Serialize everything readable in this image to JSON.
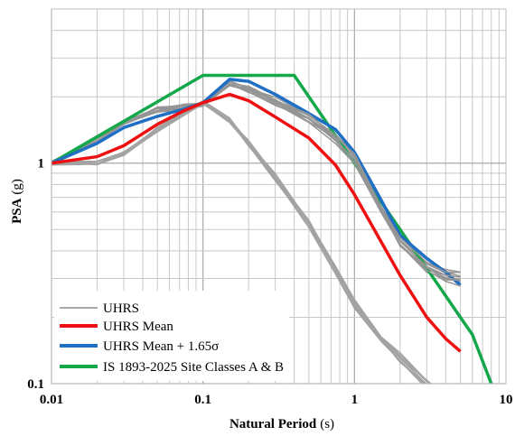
{
  "chart_data": {
    "type": "line",
    "title": "",
    "xlabel": "Natural Period",
    "xlabel_unit": "(s)",
    "ylabel": "PSA",
    "ylabel_unit": "(g)",
    "xscale": "log",
    "yscale": "log",
    "xlim": [
      0.01,
      10
    ],
    "ylim": [
      0.1,
      5
    ],
    "xticks": [
      {
        "value": 0.01,
        "label": "0.01"
      },
      {
        "value": 0.1,
        "label": "0.1"
      },
      {
        "value": 1,
        "label": "1"
      },
      {
        "value": 10,
        "label": "10"
      }
    ],
    "yticks": [
      {
        "value": 0.1,
        "label": "0.1"
      },
      {
        "value": 1,
        "label": "1"
      }
    ],
    "grid": "major and minor",
    "legend_position": "bottom-left",
    "uhrs_bundles": [
      {
        "color": "#959595",
        "count": 10,
        "x": [
          0.01,
          0.02,
          0.03,
          0.05,
          0.075,
          0.1,
          0.15,
          0.2,
          0.3,
          0.5,
          0.75,
          1.0,
          1.5,
          2.0,
          3.0,
          4.0,
          5.0
        ],
        "y": [
          1.0,
          1.27,
          1.52,
          1.75,
          1.8,
          1.86,
          2.28,
          2.16,
          1.9,
          1.6,
          1.3,
          1.05,
          0.62,
          0.44,
          0.34,
          0.31,
          0.3
        ],
        "spread": 0.06
      },
      {
        "color": "#a3a3a3",
        "count": 10,
        "x": [
          0.01,
          0.02,
          0.03,
          0.05,
          0.075,
          0.1,
          0.15,
          0.2,
          0.3,
          0.5,
          0.75,
          1.0,
          1.5,
          2.0,
          3.0,
          4.0,
          5.0
        ],
        "y": [
          1.0,
          1.0,
          1.1,
          1.42,
          1.7,
          1.9,
          1.55,
          1.23,
          0.86,
          0.53,
          0.33,
          0.23,
          0.16,
          0.13,
          0.1,
          0.085,
          0.075
        ],
        "spread": 0.05
      }
    ],
    "series": [
      {
        "name": "UHRS",
        "color": "#8c8c8c",
        "x": [],
        "y": []
      },
      {
        "name": "UHRS Mean",
        "color": "#ee1111",
        "x": [
          0.01,
          0.02,
          0.03,
          0.05,
          0.075,
          0.1,
          0.15,
          0.2,
          0.3,
          0.5,
          0.75,
          1.0,
          1.5,
          2.0,
          3.0,
          4.0,
          5.0
        ],
        "y": [
          1.0,
          1.07,
          1.2,
          1.5,
          1.73,
          1.88,
          2.05,
          1.92,
          1.62,
          1.3,
          0.98,
          0.72,
          0.44,
          0.31,
          0.2,
          0.16,
          0.14
        ]
      },
      {
        "name": "UHRS Mean + 1.65σ",
        "color": "#1f6fc5",
        "x": [
          0.01,
          0.02,
          0.03,
          0.05,
          0.075,
          0.1,
          0.15,
          0.2,
          0.3,
          0.5,
          0.75,
          1.0,
          1.5,
          2.0,
          3.0,
          4.0,
          5.0
        ],
        "y": [
          1.0,
          1.23,
          1.45,
          1.63,
          1.76,
          1.88,
          2.4,
          2.35,
          2.05,
          1.68,
          1.42,
          1.12,
          0.68,
          0.47,
          0.37,
          0.32,
          0.28
        ]
      },
      {
        "name": "IS 1893-2025 Site Classes A & B",
        "color": "#14a84a",
        "x": [
          0.01,
          0.1,
          0.4,
          1.0,
          1.5,
          2.0,
          3.0,
          4.0,
          5.0,
          6.0,
          8.0
        ],
        "y": [
          1.0,
          2.5,
          2.5,
          1.0,
          0.667,
          0.5,
          0.333,
          0.25,
          0.2,
          0.167,
          0.1
        ]
      }
    ]
  }
}
